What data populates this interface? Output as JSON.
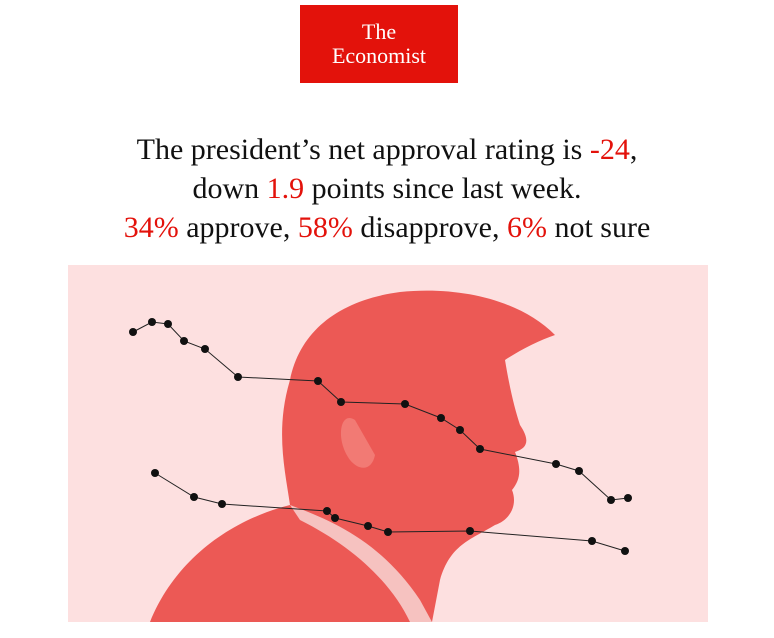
{
  "logo": {
    "line1": "The",
    "line2": "Economist"
  },
  "headline": {
    "lines": [
      [
        "The president’s net approval rating is",
        "-24",
        ","
      ],
      [
        "down",
        "1.9",
        "points since last week."
      ],
      [
        "34%",
        "approve,",
        "58%",
        "disapprove,",
        "6%",
        "not sure"
      ]
    ]
  }
}
